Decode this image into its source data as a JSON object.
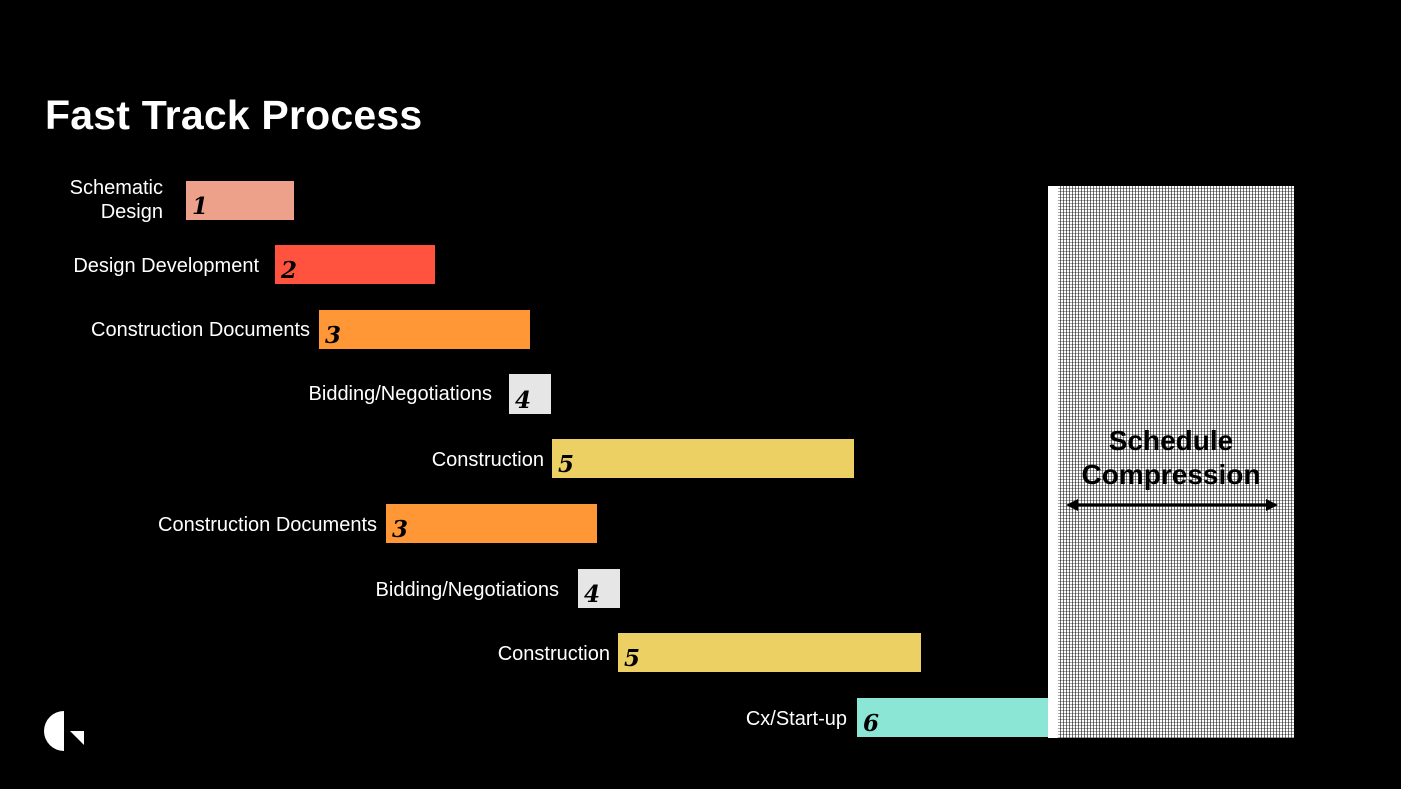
{
  "slide": {
    "title": "Fast Track Process"
  },
  "phases": [
    {
      "label": "Schematic\nDesign",
      "number": "1",
      "color": "#EDA18A"
    },
    {
      "label": "Design Development",
      "number": "2",
      "color": "#FF533F"
    },
    {
      "label": "Construction Documents",
      "number": "3",
      "color": "#FF9737"
    },
    {
      "label": "Bidding/Negotiations",
      "number": "4",
      "color": "#E6E6E6"
    },
    {
      "label": "Construction",
      "number": "5",
      "color": "#EDD063"
    },
    {
      "label": "Construction Documents",
      "number": "3",
      "color": "#FF9737"
    },
    {
      "label": "Bidding/Negotiations",
      "number": "4",
      "color": "#E6E6E6"
    },
    {
      "label": "Construction",
      "number": "5",
      "color": "#EDD063"
    },
    {
      "label": "Cx/Start-up",
      "number": "6",
      "color": "#8CE6D6"
    }
  ],
  "compression": {
    "label": "Schedule\nCompression",
    "arrow_icon": "double-arrow-horizontal-icon"
  },
  "logo_icon": "company-logo-icon",
  "colors": {
    "background": "#000000",
    "text": "#FFFFFF",
    "compression_fill": "#FFFFFF"
  }
}
